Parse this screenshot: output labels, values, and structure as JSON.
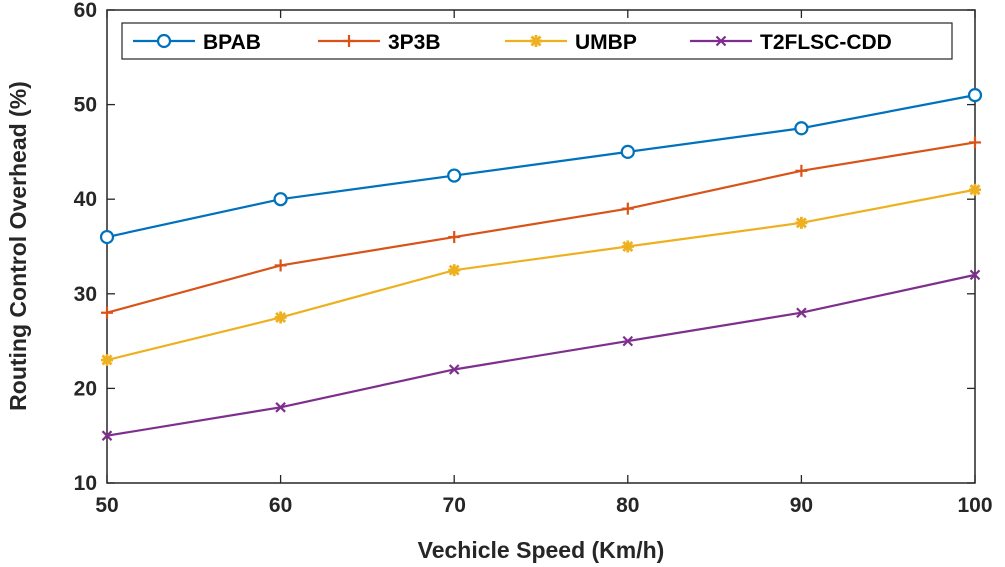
{
  "chart_data": {
    "type": "line",
    "title": "",
    "xlabel": "Vechicle Speed (Km/h)",
    "ylabel": "Routing Control Overhead (%)",
    "x": [
      50,
      60,
      70,
      80,
      90,
      100
    ],
    "xlim": [
      50,
      100
    ],
    "ylim": [
      10,
      60
    ],
    "xticks": [
      "50",
      "60",
      "70",
      "80",
      "90",
      "100"
    ],
    "yticks": [
      "10",
      "20",
      "30",
      "40",
      "50",
      "60"
    ],
    "grid": false,
    "legend_position": "top",
    "series": [
      {
        "name": "BPAB",
        "marker": "circle",
        "color": "#0072BD",
        "values": [
          36,
          40,
          42.5,
          45,
          47.5,
          51
        ]
      },
      {
        "name": "3P3B",
        "marker": "plus",
        "color": "#D95319",
        "values": [
          28,
          33,
          36,
          39,
          43,
          46
        ]
      },
      {
        "name": "UMBP",
        "marker": "asterisk",
        "color": "#EDB120",
        "values": [
          23,
          27.5,
          32.5,
          35,
          37.5,
          41
        ]
      },
      {
        "name": "T2FLSC-CDD",
        "marker": "x",
        "color": "#7E2F8E",
        "values": [
          15,
          18,
          22,
          25,
          28,
          32
        ]
      }
    ]
  }
}
